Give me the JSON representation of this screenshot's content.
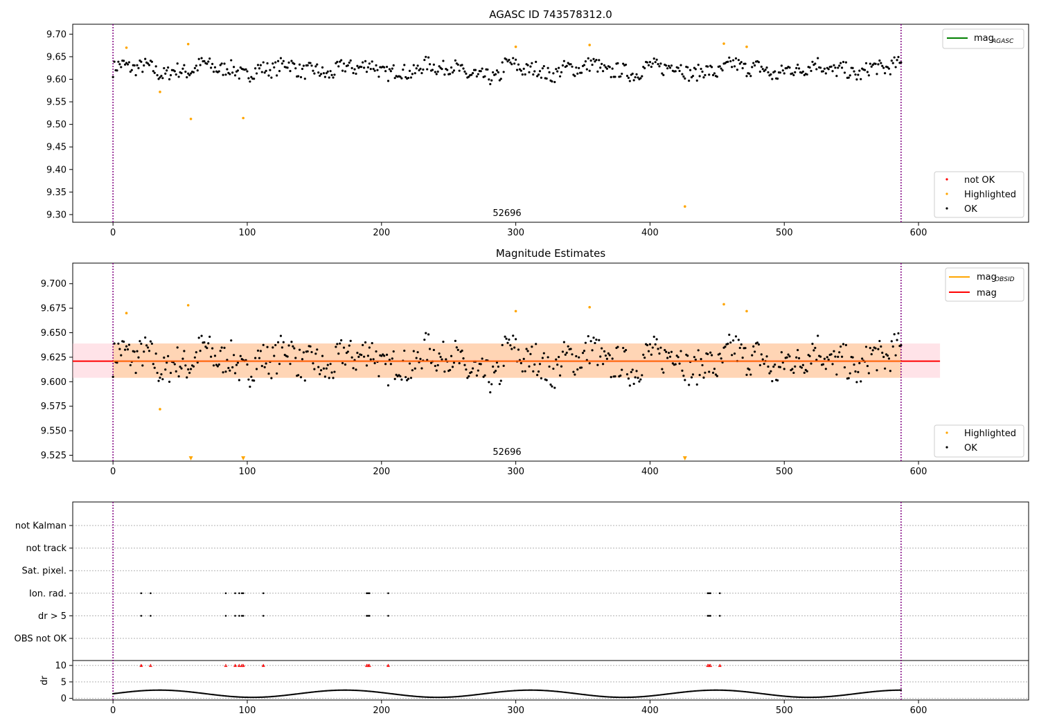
{
  "chart_data": [
    {
      "type": "scatter",
      "title": "AGASC ID 743578312.0",
      "xlim": [
        -30,
        682
      ],
      "ylim": [
        9.283,
        9.722
      ],
      "xticks": [
        0,
        100,
        200,
        300,
        400,
        500,
        600
      ],
      "yticks": [
        9.3,
        9.35,
        9.4,
        9.45,
        9.5,
        9.55,
        9.6,
        9.65,
        9.7
      ],
      "ytick_labels": [
        "9.30",
        "9.35",
        "9.40",
        "9.45",
        "9.50",
        "9.55",
        "9.60",
        "9.65",
        "9.70"
      ],
      "annotation": "52696",
      "annotation_x": 293,
      "vlines": [
        0,
        587
      ],
      "legend_top": [
        {
          "label": "mag",
          "sub": "AGASC",
          "color": "#008000"
        }
      ],
      "legend_bottom": [
        {
          "label": "not OK",
          "color": "#ff0000"
        },
        {
          "label": "Highlighted",
          "color": "#ffa500"
        },
        {
          "label": "OK",
          "color": "#000000"
        }
      ],
      "highlighted": [
        {
          "x": 10,
          "y": 9.67
        },
        {
          "x": 35,
          "y": 9.572
        },
        {
          "x": 56,
          "y": 9.678
        },
        {
          "x": 58,
          "y": 9.512
        },
        {
          "x": 97,
          "y": 9.514
        },
        {
          "x": 300,
          "y": 9.672
        },
        {
          "x": 355,
          "y": 9.676
        },
        {
          "x": 426,
          "y": 9.318
        },
        {
          "x": 455,
          "y": 9.679
        },
        {
          "x": 472,
          "y": 9.672
        }
      ],
      "not_ok": [],
      "ok_model": {
        "n": 588,
        "base": 9.622,
        "amp": 0.017,
        "ymin": 9.575,
        "ymax": 9.666
      }
    },
    {
      "type": "scatter",
      "title": "Magnitude Estimates",
      "xlim": [
        -30,
        682
      ],
      "ylim": [
        9.519,
        9.721
      ],
      "xticks": [
        0,
        100,
        200,
        300,
        400,
        500,
        600
      ],
      "yticks": [
        9.525,
        9.55,
        9.575,
        9.6,
        9.625,
        9.65,
        9.675,
        9.7
      ],
      "ytick_labels": [
        "9.525",
        "9.550",
        "9.575",
        "9.600",
        "9.625",
        "9.650",
        "9.675",
        "9.700"
      ],
      "annotation": "52696",
      "annotation_x": 293,
      "vlines": [
        0,
        587
      ],
      "mag": 9.621,
      "band_outer": [
        9.604,
        9.639
      ],
      "band_xrange": [
        -30,
        616
      ],
      "band_inner_xrange": [
        0,
        587
      ],
      "legend_top": [
        {
          "label": "mag",
          "sub": "OBSID",
          "color": "#ffa500"
        },
        {
          "label": "mag",
          "sub": "",
          "color": "#ff0000"
        }
      ],
      "legend_bottom": [
        {
          "label": "Highlighted",
          "color": "#ffa500"
        },
        {
          "label": "OK",
          "color": "#000000"
        }
      ],
      "highlighted": [
        {
          "x": 10,
          "y": 9.67
        },
        {
          "x": 35,
          "y": 9.572
        },
        {
          "x": 56,
          "y": 9.678
        },
        {
          "x": 300,
          "y": 9.672
        },
        {
          "x": 355,
          "y": 9.676
        },
        {
          "x": 455,
          "y": 9.679
        },
        {
          "x": 472,
          "y": 9.672
        }
      ],
      "offscale_markers": [
        {
          "x": 58
        },
        {
          "x": 97
        },
        {
          "x": 426
        }
      ],
      "ok_model": {
        "n": 588,
        "base": 9.622,
        "amp": 0.017,
        "ymin": 9.575,
        "ymax": 9.666
      }
    },
    {
      "type": "scatter",
      "title": "",
      "xlim": [
        -30,
        682
      ],
      "xticks": [
        0,
        100,
        200,
        300,
        400,
        500,
        600
      ],
      "vlines": [
        0,
        587
      ],
      "flag_rows": [
        "not Kalman",
        "not track",
        "Sat. pixel.",
        "Ion. rad.",
        "dr > 5",
        "OBS not OK"
      ],
      "flag_events": {
        "Ion. rad.": [
          21,
          28,
          84,
          91,
          94,
          96,
          97,
          112,
          189,
          190,
          191,
          205,
          443,
          444,
          445,
          452
        ],
        "dr > 5": [
          21,
          28,
          84,
          91,
          94,
          96,
          97,
          112,
          189,
          190,
          191,
          205,
          443,
          444,
          445,
          452
        ]
      },
      "dr_ylabel": "dr",
      "dr_ylim": [
        -0.5,
        11.5
      ],
      "dr_yticks": [
        0,
        5,
        10
      ],
      "dr_ytick_labels": [
        "0",
        "5",
        "10"
      ],
      "dr_clipped": [
        21,
        28,
        84,
        91,
        94,
        96,
        97,
        112,
        189,
        190,
        191,
        205,
        443,
        444,
        445,
        452
      ],
      "dr_model": {
        "n": 588,
        "min": 0.3,
        "max": 2.5
      }
    }
  ]
}
